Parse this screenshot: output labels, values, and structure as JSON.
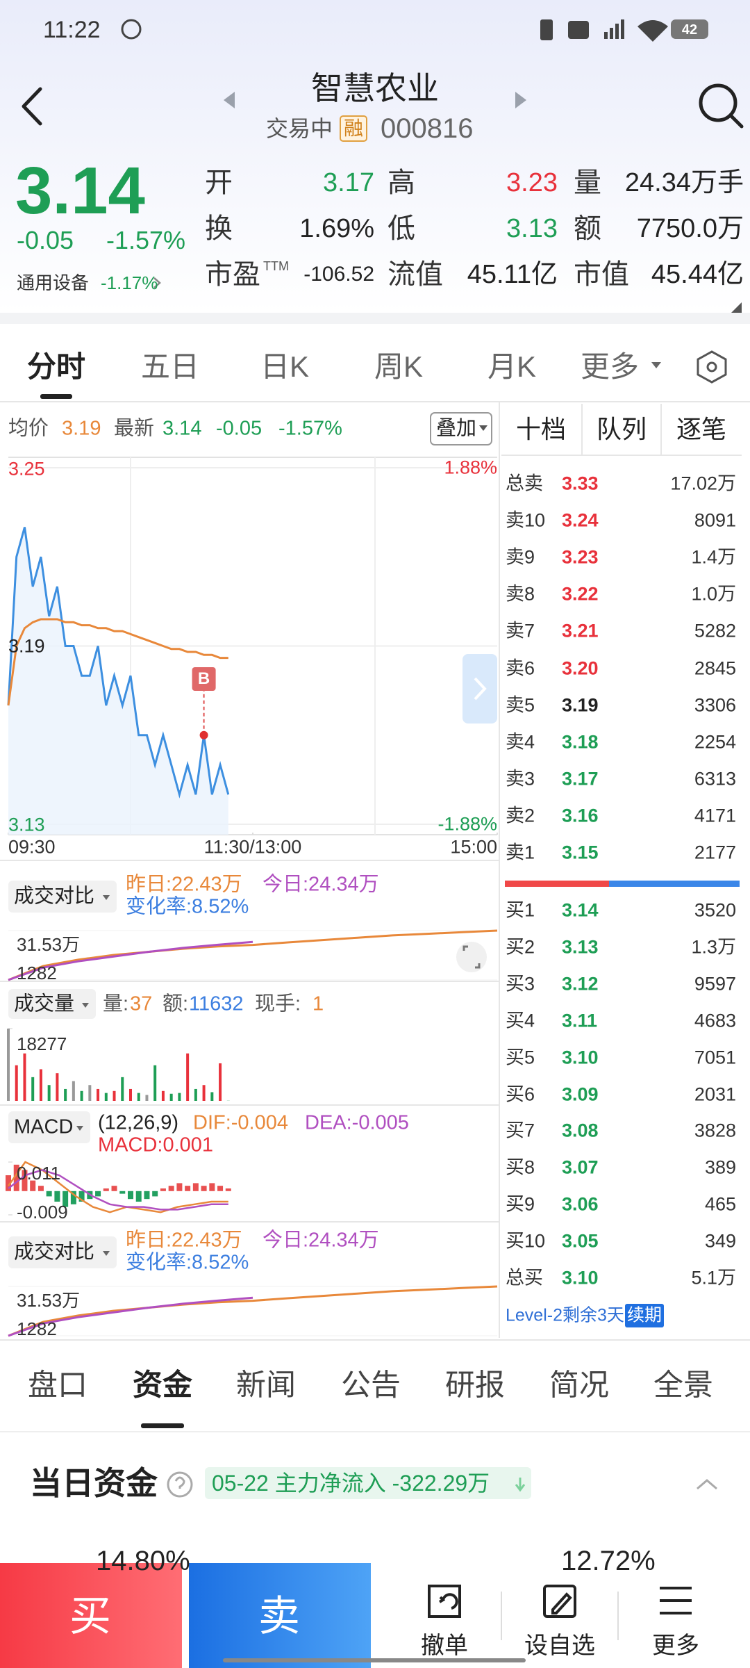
{
  "status_bar": {
    "time": "11:22",
    "battery": "42"
  },
  "header": {
    "title": "智慧农业",
    "state": "交易中",
    "badge": "融",
    "code": "000816"
  },
  "quote": {
    "price": "3.14",
    "change": "-0.05",
    "change_pct": "-1.57%",
    "sector": "通用设备",
    "sector_pct": "-1.17%",
    "stats": [
      {
        "label": "开",
        "value": "3.17"
      },
      {
        "label": "高",
        "value": "3.23"
      },
      {
        "label": "量",
        "value": "24.34万手"
      },
      {
        "label": "换",
        "value": "1.69%"
      },
      {
        "label": "低",
        "value": "3.13"
      },
      {
        "label": "额",
        "value": "7750.0万"
      },
      {
        "label": "市盈",
        "sup": "TTM",
        "value": "-106.52"
      },
      {
        "label": "流值",
        "value": "45.11亿"
      },
      {
        "label": "市值",
        "value": "45.44亿"
      }
    ]
  },
  "chart_tabs": [
    "分时",
    "五日",
    "日K",
    "周K",
    "月K",
    "更多"
  ],
  "intraday": {
    "avg_label": "均价",
    "avg": "3.19",
    "latest_label": "最新",
    "latest": "3.14",
    "change": "-0.05",
    "change_pct": "-1.57%",
    "overlay": "叠加",
    "marker": "B",
    "xlim": [
      0,
      240
    ],
    "xticks": [
      {
        "value": 0,
        "label": "09:30"
      },
      {
        "value": 120,
        "label": "11:30/13:00"
      },
      {
        "value": 240,
        "label": "15:00"
      }
    ],
    "ylim": [
      3.13,
      3.25
    ],
    "yticks": [
      3.25,
      3.19,
      3.13
    ],
    "pct_ticks": [
      {
        "value": 1.88,
        "label": "1.88%"
      },
      {
        "value": -1.88,
        "label": "-1.88%"
      }
    ],
    "price": [
      3.17,
      3.22,
      3.23,
      3.21,
      3.22,
      3.2,
      3.21,
      3.19,
      3.19,
      3.18,
      3.18,
      3.19,
      3.17,
      3.18,
      3.17,
      3.18,
      3.16,
      3.16,
      3.15,
      3.16,
      3.15,
      3.14,
      3.15,
      3.14,
      3.16,
      3.14,
      3.15,
      3.14
    ],
    "average": [
      3.17,
      3.19,
      3.196,
      3.198,
      3.199,
      3.199,
      3.199,
      3.198,
      3.198,
      3.197,
      3.197,
      3.196,
      3.196,
      3.195,
      3.195,
      3.194,
      3.193,
      3.192,
      3.191,
      3.19,
      3.189,
      3.189,
      3.188,
      3.188,
      3.187,
      3.187,
      3.186,
      3.186
    ],
    "price_color": "#3d8fe0",
    "average_color": "#e8883a"
  },
  "compare_panels": [
    {
      "label": "成交对比",
      "yesterday": "昨日:22.43万",
      "today": "今日:24.34万",
      "change": "变化率:8.52%",
      "ylim": [
        0.1282,
        31.53
      ],
      "yticks": [
        {
          "value": 31.53,
          "label": "31.53万"
        },
        {
          "value": 0.1282,
          "label": "1282"
        }
      ],
      "yesterday_curve": [
        0.1282,
        9,
        13,
        16,
        18,
        20,
        21.5,
        22.43,
        24,
        25.5,
        27,
        28.5,
        29.5,
        30.5,
        31.53
      ],
      "today_curve": [
        0.1282,
        8,
        12,
        15,
        18,
        20.5,
        22.5,
        24.34
      ]
    },
    {
      "label": "成交对比",
      "yesterday": "昨日:22.43万",
      "today": "今日:24.34万",
      "change": "变化率:8.52%",
      "ylim": [
        0.1282,
        31.53
      ],
      "yticks": [
        {
          "value": 31.53,
          "label": "31.53万"
        },
        {
          "value": 0.1282,
          "label": "1282"
        }
      ],
      "yesterday_curve": [
        0.1282,
        9,
        13,
        16,
        18,
        20,
        21.5,
        22.43,
        24,
        25.5,
        27,
        28.5,
        29.5,
        30.5,
        31.53
      ],
      "today_curve": [
        0.1282,
        8,
        12,
        15,
        18,
        20.5,
        22.5,
        24.34
      ]
    }
  ],
  "volume": {
    "label": "成交量",
    "vol_label": "量:",
    "vol": "37",
    "amount_label": "额:",
    "amount": "11632",
    "hand_label": "现手:",
    "hand": "1",
    "ylim": [
      0,
      18277
    ],
    "yticks": [
      18277
    ],
    "values": [
      18277,
      9000,
      12000,
      6000,
      8000,
      4000,
      7000,
      3000,
      5000,
      2500,
      4000,
      3000,
      2000,
      2500,
      6000,
      3000,
      2000,
      1500,
      9000,
      2500,
      1800,
      2000,
      12000,
      3000,
      4000,
      2200,
      9500,
      37
    ]
  },
  "macd": {
    "label": "MACD",
    "params": "(12,26,9)",
    "dif": "DIF:-0.004",
    "dea": "DEA:-0.005",
    "macd": "MACD:0.001",
    "ylim": [
      -0.009,
      0.011
    ],
    "yticks": [
      0.011,
      -0.009
    ],
    "bars": [
      0.006,
      0.01,
      0.008,
      0.004,
      0.002,
      -0.002,
      -0.004,
      -0.006,
      -0.005,
      -0.004,
      -0.003,
      -0.002,
      0.001,
      0.002,
      -0.001,
      -0.003,
      -0.004,
      -0.003,
      -0.002,
      0.001,
      0.002,
      0.003,
      0.002,
      0.003,
      0.002,
      0.003,
      0.002,
      0.001
    ],
    "dif_line": [
      0.002,
      0.011,
      0.008,
      0.003,
      -0.002,
      -0.006,
      -0.008,
      -0.006,
      -0.007,
      -0.008,
      -0.006,
      -0.005,
      -0.004,
      -0.004
    ],
    "dea_line": [
      0.001,
      0.006,
      0.008,
      0.006,
      0.002,
      -0.002,
      -0.005,
      -0.006,
      -0.006,
      -0.007,
      -0.007,
      -0.006,
      -0.005,
      -0.005
    ]
  },
  "order_book": {
    "tabs": [
      "十档",
      "队列",
      "逐笔"
    ],
    "sells": [
      [
        "总卖",
        "3.33",
        "17.02万"
      ],
      [
        "卖10",
        "3.24",
        "8091"
      ],
      [
        "卖9",
        "3.23",
        "1.4万"
      ],
      [
        "卖8",
        "3.22",
        "1.0万"
      ],
      [
        "卖7",
        "3.21",
        "5282"
      ],
      [
        "卖6",
        "3.20",
        "2845"
      ],
      [
        "卖5",
        "3.19",
        "3306"
      ],
      [
        "卖4",
        "3.18",
        "2254"
      ],
      [
        "卖3",
        "3.17",
        "6313"
      ],
      [
        "卖2",
        "3.16",
        "4171"
      ],
      [
        "卖1",
        "3.15",
        "2177"
      ]
    ],
    "buys": [
      [
        "买1",
        "3.14",
        "3520"
      ],
      [
        "买2",
        "3.13",
        "1.3万"
      ],
      [
        "买3",
        "3.12",
        "9597"
      ],
      [
        "买4",
        "3.11",
        "4683"
      ],
      [
        "买5",
        "3.10",
        "7051"
      ],
      [
        "买6",
        "3.09",
        "2031"
      ],
      [
        "买7",
        "3.08",
        "3828"
      ],
      [
        "买8",
        "3.07",
        "389"
      ],
      [
        "买9",
        "3.06",
        "465"
      ],
      [
        "买10",
        "3.05",
        "349"
      ],
      [
        "总买",
        "3.10",
        "5.1万"
      ]
    ],
    "level2": "Level-2剩余3天",
    "renew": "续期"
  },
  "bottom_tabs": [
    "盘口",
    "资金",
    "新闻",
    "公告",
    "研报",
    "简况",
    "全景"
  ],
  "active_bottom_tab": 1,
  "funds": {
    "title": "当日资金",
    "tag": "05-22 主力净流入 -322.29万",
    "left_pct": "14.80%",
    "right_pct": "12.72%"
  },
  "actions": {
    "buy": "买",
    "sell": "卖",
    "items": [
      "撤单",
      "设自选",
      "更多"
    ]
  }
}
